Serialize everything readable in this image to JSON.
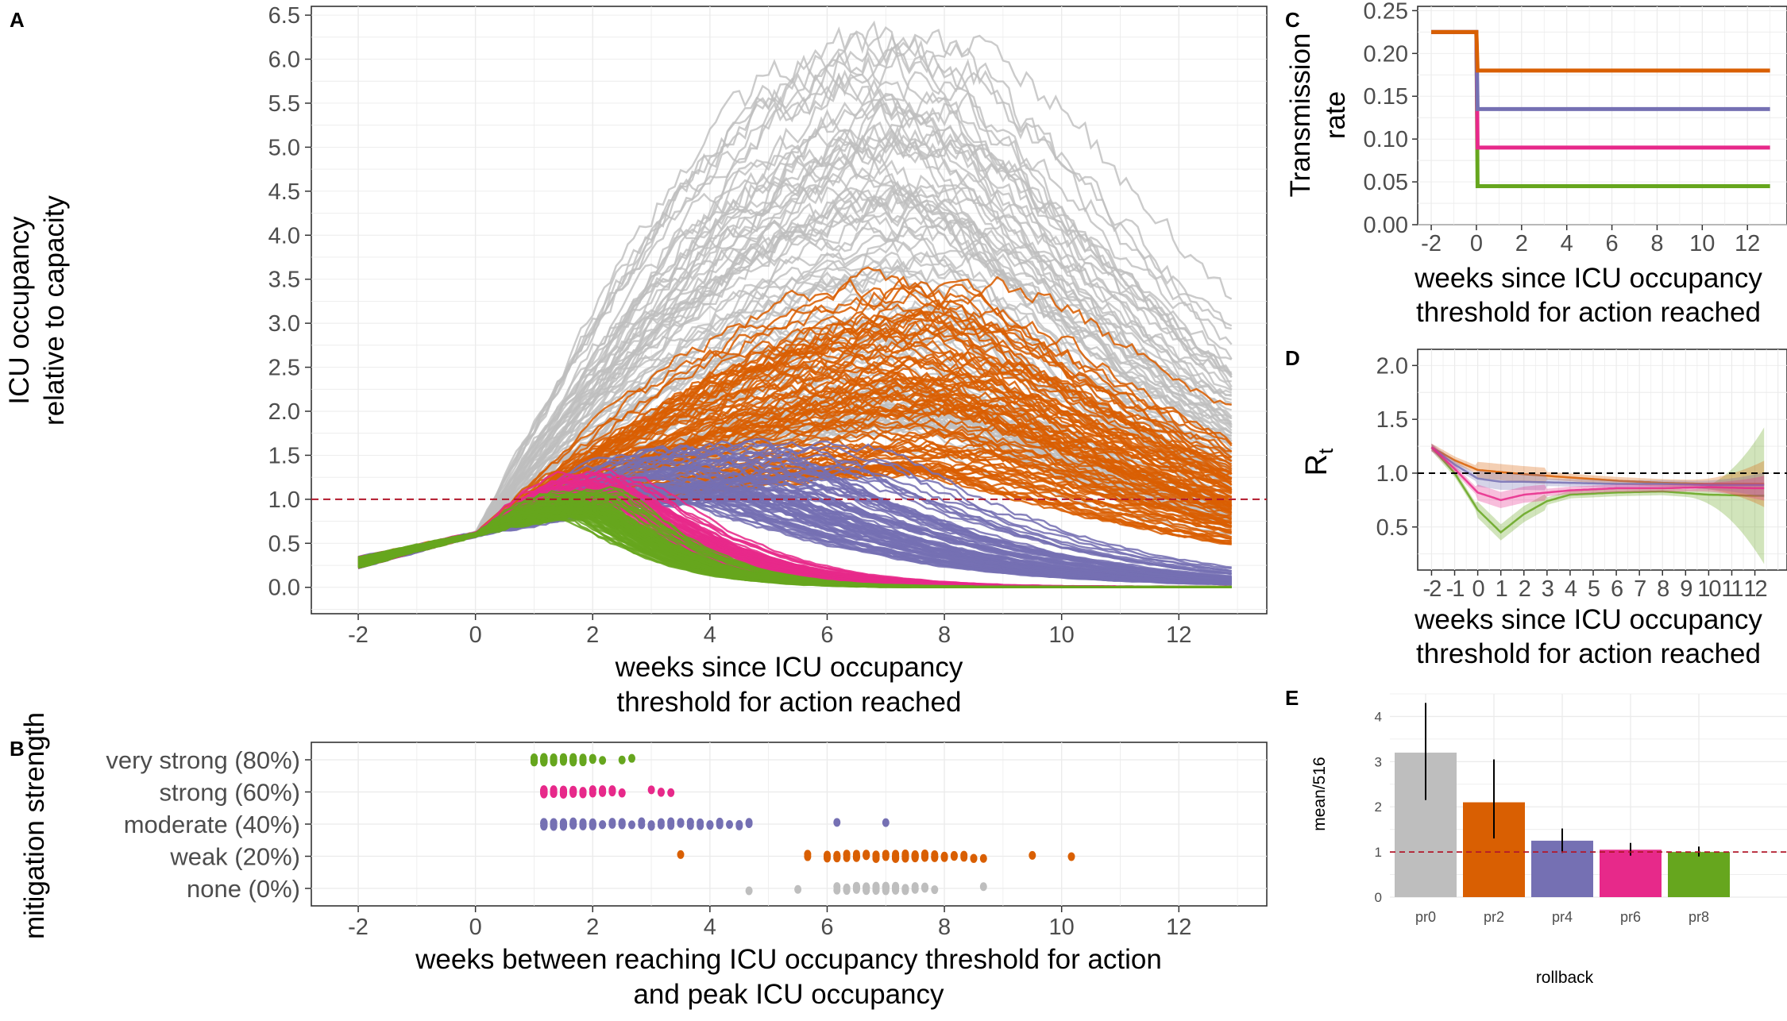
{
  "colors": {
    "none": "#BEBEBE",
    "weak": "#D95F02",
    "moderate": "#7570B3",
    "strong": "#E7298A",
    "very_strong": "#66A61E",
    "threshold": "#B2182B",
    "grid": "#EBEBEB"
  },
  "chart_data": [
    {
      "panel": "A",
      "type": "line",
      "xlabel": "weeks since ICU occupancy\nthreshold for action reached",
      "ylabel": "ICU occupancy\nrelative to capacity",
      "xlim": [
        -2.8,
        13.5
      ],
      "ylim": [
        -0.3,
        6.6
      ],
      "xticks": [
        -2,
        0,
        2,
        4,
        6,
        8,
        10,
        12
      ],
      "yticks": [
        0.0,
        0.5,
        1.0,
        1.5,
        2.0,
        2.5,
        3.0,
        3.5,
        4.0,
        4.5,
        5.0,
        5.5,
        6.0,
        6.5
      ],
      "threshold_line": 1.0,
      "series": [
        {
          "group": "none",
          "n": 100,
          "peak_week": [
            5.5,
            9.0
          ],
          "peak_value": [
            1.8,
            6.25
          ]
        },
        {
          "group": "weak",
          "n": 90,
          "peak_week": [
            6.0,
            9.6
          ],
          "peak_value": [
            1.3,
            3.5
          ]
        },
        {
          "group": "moderate",
          "n": 80,
          "peak_week": [
            1.2,
            7.2
          ],
          "peak_value": [
            1.0,
            1.65
          ]
        },
        {
          "group": "strong",
          "n": 70,
          "peak_week": [
            1.0,
            2.8
          ],
          "peak_value": [
            0.95,
            1.3
          ]
        },
        {
          "group": "very_strong",
          "n": 80,
          "peak_week": [
            0.9,
            2.6
          ],
          "peak_value": [
            0.8,
            1.15
          ]
        }
      ]
    },
    {
      "panel": "B",
      "type": "scatter",
      "xlabel": "weeks between reaching ICU occupancy threshold for action\nand peak ICU occupancy",
      "ylabel": "mitigation strength",
      "xlim": [
        -2.8,
        13.5
      ],
      "xticks": [
        -2,
        0,
        2,
        4,
        6,
        8,
        10,
        12
      ],
      "categories": [
        "very strong (80%)",
        "strong (60%)",
        "moderate (40%)",
        "weak (20%)",
        "none (0%)"
      ],
      "category_groups": [
        "very_strong",
        "strong",
        "moderate",
        "weak",
        "none"
      ],
      "ranges": [
        [
          1.0,
          2.6
        ],
        [
          1.1,
          3.4
        ],
        [
          1.2,
          7.0
        ],
        [
          3.1,
          10.1
        ],
        [
          4.6,
          8.7
        ]
      ]
    },
    {
      "panel": "C",
      "type": "line",
      "xlabel": "weeks since ICU occupancy\nthreshold for action reached",
      "ylabel": "Transmission\nrate",
      "xlim": [
        -2.6,
        13.4
      ],
      "ylim": [
        0.0,
        0.255
      ],
      "xticks": [
        -2,
        0,
        2,
        4,
        6,
        8,
        10,
        12
      ],
      "yticks": [
        0.0,
        0.05,
        0.1,
        0.15,
        0.2,
        0.25
      ],
      "ytick_labels": [
        "0.00",
        "0.05",
        "0.10",
        "0.15",
        "0.20",
        "0.25"
      ],
      "baseline": 0.225,
      "series": [
        {
          "group": "weak",
          "after": 0.18
        },
        {
          "group": "moderate",
          "after": 0.135
        },
        {
          "group": "strong",
          "after": 0.09
        },
        {
          "group": "very_strong",
          "after": 0.045
        }
      ]
    },
    {
      "panel": "D",
      "type": "line",
      "xlabel": "weeks since ICU occupancy\nthreshold for action reached",
      "ylabel": "Rt",
      "xlim": [
        -2.6,
        12.6
      ],
      "ylim": [
        0.1,
        2.15
      ],
      "xticks": [
        -2,
        -1,
        0,
        1,
        2,
        3,
        4,
        5,
        6,
        7,
        8,
        9,
        10,
        11,
        12
      ],
      "yticks": [
        0.5,
        1.0,
        1.5,
        2.0
      ],
      "ytick_labels": [
        "0.5",
        "1.0",
        "1.5",
        "2.0"
      ],
      "reference_line": 1.0,
      "series": [
        {
          "group": "weak",
          "x": [
            -2,
            -1,
            0,
            1,
            2,
            4,
            6,
            8,
            10,
            12
          ],
          "y": [
            1.24,
            1.12,
            1.03,
            1.01,
            0.99,
            0.96,
            0.93,
            0.91,
            0.9,
            0.9
          ]
        },
        {
          "group": "moderate",
          "x": [
            -2,
            -1,
            0,
            1,
            2,
            4,
            6,
            8,
            10,
            12
          ],
          "y": [
            1.24,
            1.08,
            0.95,
            0.92,
            0.92,
            0.91,
            0.9,
            0.9,
            0.89,
            0.89
          ]
        },
        {
          "group": "strong",
          "x": [
            -2,
            -1,
            0,
            1,
            2,
            4,
            6,
            8,
            10,
            12
          ],
          "y": [
            1.24,
            1.04,
            0.82,
            0.75,
            0.8,
            0.84,
            0.86,
            0.86,
            0.87,
            0.86
          ]
        },
        {
          "group": "very_strong",
          "x": [
            -2,
            -1,
            0,
            1,
            2,
            3,
            4,
            6,
            8,
            10,
            12
          ],
          "y": [
            1.24,
            1.0,
            0.66,
            0.45,
            0.62,
            0.74,
            0.8,
            0.82,
            0.83,
            0.8,
            0.79
          ]
        }
      ]
    },
    {
      "panel": "E",
      "type": "bar",
      "xlabel": "rollback",
      "ylabel": "mean/516",
      "categories": [
        "pr0",
        "pr2",
        "pr4",
        "pr6",
        "pr8"
      ],
      "category_groups": [
        "none",
        "weak",
        "moderate",
        "strong",
        "very_strong"
      ],
      "values": [
        3.2,
        2.1,
        1.25,
        1.05,
        1.0
      ],
      "error_low": [
        2.15,
        1.3,
        0.98,
        0.92,
        0.9
      ],
      "error_high": [
        4.3,
        3.05,
        1.52,
        1.2,
        1.12
      ],
      "ylim": [
        0,
        4.5
      ],
      "yticks": [
        0,
        1,
        2,
        3,
        4
      ],
      "reference_line": 1.0
    }
  ],
  "panel_labels": [
    "A",
    "B",
    "C",
    "D",
    "E"
  ]
}
